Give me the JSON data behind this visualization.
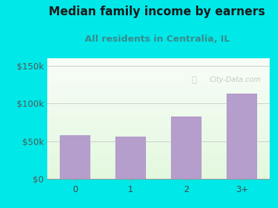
{
  "title": "Median family income by earners",
  "subtitle": "All residents in Centralia, IL",
  "categories": [
    "0",
    "1",
    "2",
    "3+"
  ],
  "values": [
    58000,
    56000,
    83000,
    113000
  ],
  "bar_color": "#b59dcc",
  "title_fontsize": 12,
  "subtitle_fontsize": 9.5,
  "title_color": "#1a1a1a",
  "subtitle_color": "#3a8a8a",
  "outer_bg": "#00e8e8",
  "plot_bg_top": "#f0f8f0",
  "plot_bg_bottom": "#d8efd8",
  "ylim": [
    0,
    160000
  ],
  "yticks": [
    0,
    50000,
    100000,
    150000
  ],
  "ytick_labels": [
    "$0",
    "$50k",
    "$100k",
    "$150k"
  ],
  "watermark": "City-Data.com",
  "watermark_color": "#b0b8b0"
}
